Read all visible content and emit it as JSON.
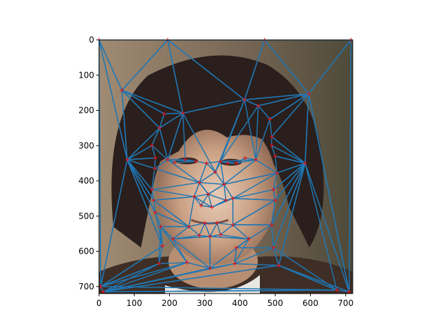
{
  "chart_data": {
    "type": "scatter",
    "title": "",
    "xlabel": "",
    "ylabel": "",
    "xlim": [
      0,
      720
    ],
    "ylim": [
      720,
      0
    ],
    "y_inverted": true,
    "grid": false,
    "x_ticks": [
      0,
      100,
      200,
      300,
      400,
      500,
      600,
      700
    ],
    "y_ticks": [
      0,
      100,
      200,
      300,
      400,
      500,
      600,
      700
    ],
    "background_image": "face-photo",
    "colors": {
      "edges": "#1f77b4",
      "points": "#ff0000",
      "axes": "#000000"
    },
    "points": [
      [
        0,
        0
      ],
      [
        195,
        0
      ],
      [
        470,
        0
      ],
      [
        715,
        0
      ],
      [
        65,
        143
      ],
      [
        595,
        153
      ],
      [
        413,
        170
      ],
      [
        452,
        187
      ],
      [
        185,
        210
      ],
      [
        238,
        208
      ],
      [
        172,
        250
      ],
      [
        485,
        225
      ],
      [
        490,
        275
      ],
      [
        80,
        340
      ],
      [
        585,
        350
      ],
      [
        150,
        300
      ],
      [
        160,
        335
      ],
      [
        158,
        365
      ],
      [
        490,
        300
      ],
      [
        500,
        330
      ],
      [
        505,
        378
      ],
      [
        195,
        340
      ],
      [
        215,
        348
      ],
      [
        245,
        340
      ],
      [
        275,
        345
      ],
      [
        305,
        350
      ],
      [
        330,
        375
      ],
      [
        345,
        345
      ],
      [
        365,
        350
      ],
      [
        390,
        350
      ],
      [
        415,
        335
      ],
      [
        445,
        340
      ],
      [
        285,
        405
      ],
      [
        355,
        410
      ],
      [
        310,
        438
      ],
      [
        270,
        445
      ],
      [
        290,
        470
      ],
      [
        320,
        475
      ],
      [
        360,
        455
      ],
      [
        380,
        450
      ],
      [
        150,
        425
      ],
      [
        155,
        455
      ],
      [
        160,
        490
      ],
      [
        495,
        425
      ],
      [
        500,
        455
      ],
      [
        175,
        530
      ],
      [
        255,
        530
      ],
      [
        300,
        520
      ],
      [
        335,
        520
      ],
      [
        380,
        525
      ],
      [
        490,
        525
      ],
      [
        210,
        565
      ],
      [
        285,
        555
      ],
      [
        315,
        558
      ],
      [
        345,
        553
      ],
      [
        425,
        565
      ],
      [
        180,
        585
      ],
      [
        390,
        590
      ],
      [
        495,
        590
      ],
      [
        170,
        635
      ],
      [
        250,
        632
      ],
      [
        315,
        648
      ],
      [
        385,
        635
      ],
      [
        510,
        640
      ],
      [
        5,
        700
      ],
      [
        12,
        715
      ],
      [
        675,
        710
      ],
      [
        710,
        715
      ]
    ],
    "triangles": [
      [
        0,
        1,
        4
      ],
      [
        1,
        4,
        9
      ],
      [
        1,
        2,
        6
      ],
      [
        1,
        6,
        9
      ],
      [
        2,
        3,
        5
      ],
      [
        2,
        5,
        6
      ],
      [
        6,
        5,
        7
      ],
      [
        0,
        4,
        13
      ],
      [
        0,
        13,
        64
      ],
      [
        3,
        5,
        67
      ],
      [
        5,
        14,
        67
      ],
      [
        5,
        7,
        11
      ],
      [
        5,
        11,
        12
      ],
      [
        5,
        12,
        14
      ],
      [
        4,
        8,
        9
      ],
      [
        4,
        8,
        10
      ],
      [
        4,
        10,
        13
      ],
      [
        8,
        9,
        10
      ],
      [
        9,
        6,
        26
      ],
      [
        9,
        10,
        21
      ],
      [
        9,
        21,
        23
      ],
      [
        6,
        7,
        27
      ],
      [
        6,
        27,
        31
      ],
      [
        7,
        11,
        31
      ],
      [
        10,
        13,
        15
      ],
      [
        10,
        15,
        21
      ],
      [
        13,
        15,
        16
      ],
      [
        13,
        16,
        17
      ],
      [
        13,
        17,
        40
      ],
      [
        13,
        40,
        41
      ],
      [
        13,
        41,
        42
      ],
      [
        13,
        42,
        56
      ],
      [
        13,
        56,
        64
      ],
      [
        12,
        14,
        18
      ],
      [
        14,
        18,
        19
      ],
      [
        14,
        19,
        20
      ],
      [
        14,
        20,
        43
      ],
      [
        14,
        43,
        44
      ],
      [
        14,
        44,
        50
      ],
      [
        14,
        50,
        58
      ],
      [
        14,
        58,
        63
      ],
      [
        14,
        63,
        66
      ],
      [
        21,
        22,
        24
      ],
      [
        23,
        24,
        25
      ],
      [
        25,
        26,
        27
      ],
      [
        27,
        28,
        29
      ],
      [
        29,
        30,
        31
      ],
      [
        25,
        26,
        32
      ],
      [
        26,
        27,
        33
      ],
      [
        32,
        33,
        34
      ],
      [
        32,
        34,
        35
      ],
      [
        33,
        34,
        38
      ],
      [
        35,
        36,
        37
      ],
      [
        37,
        38,
        39
      ],
      [
        34,
        36,
        37
      ],
      [
        17,
        21,
        32
      ],
      [
        17,
        32,
        40
      ],
      [
        31,
        20,
        33
      ],
      [
        20,
        33,
        39
      ],
      [
        40,
        41,
        35
      ],
      [
        41,
        42,
        46
      ],
      [
        35,
        41,
        46
      ],
      [
        39,
        43,
        44
      ],
      [
        39,
        44,
        49
      ],
      [
        44,
        49,
        50
      ],
      [
        42,
        45,
        46
      ],
      [
        46,
        47,
        52
      ],
      [
        47,
        48,
        53
      ],
      [
        48,
        49,
        54
      ],
      [
        49,
        50,
        55
      ],
      [
        45,
        46,
        51
      ],
      [
        51,
        52,
        53
      ],
      [
        53,
        54,
        55
      ],
      [
        45,
        56,
        59
      ],
      [
        45,
        51,
        60
      ],
      [
        51,
        53,
        61
      ],
      [
        53,
        55,
        61
      ],
      [
        55,
        57,
        62
      ],
      [
        57,
        58,
        62
      ],
      [
        56,
        59,
        64
      ],
      [
        59,
        60,
        64
      ],
      [
        60,
        61,
        65
      ],
      [
        61,
        62,
        65
      ],
      [
        62,
        63,
        65
      ],
      [
        63,
        65,
        66
      ],
      [
        64,
        65,
        66
      ],
      [
        64,
        59,
        65
      ],
      [
        63,
        66,
        67
      ],
      [
        58,
        63,
        66
      ]
    ]
  }
}
